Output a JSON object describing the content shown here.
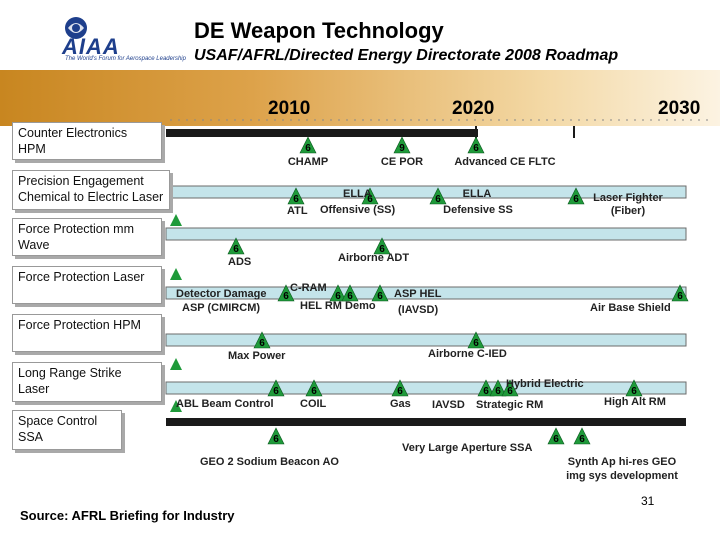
{
  "header": {
    "logo_text": "AIAA",
    "logo_tagline": "The World's Forum for Aerospace Leadership",
    "title": "DE Weapon Technology",
    "subtitle": "USAF/AFRL/Directed Energy Directorate 2008 Roadmap"
  },
  "timeline": {
    "years": [
      "2010",
      "2020",
      "2030"
    ],
    "milestone_marker": "6",
    "rows": [
      {
        "id": "ce",
        "label": "Counter Electronics HPM",
        "milestones": [
          {
            "mark": "6"
          },
          {
            "mark": "9"
          },
          {
            "mark": "6"
          }
        ],
        "annotations": [
          "CHAMP",
          "CE POR",
          "Advanced CE FLTC"
        ]
      },
      {
        "id": "pe",
        "label": "Precision Engagement Chemical to Electric Laser",
        "milestones": [
          {
            "mark": "6"
          },
          {
            "mark": "6"
          },
          {
            "mark": "6"
          },
          {
            "mark": "6"
          }
        ],
        "annotations": [
          "ELLA",
          "ATL",
          "Offensive (SS)",
          "ELLA",
          "Defensive SS",
          "Laser Fighter",
          "(Fiber)"
        ]
      },
      {
        "id": "fpm",
        "label": "Force Protection mm Wave",
        "milestones": [
          {
            "mark": "6"
          },
          {
            "mark": "6"
          }
        ],
        "annotations": [
          "ADS",
          "Airborne ADT"
        ]
      },
      {
        "id": "fpl",
        "label": "Force Protection Laser",
        "milestones": [
          {
            "mark": "6"
          },
          {
            "mark": "6"
          },
          {
            "mark": "6"
          },
          {
            "mark": "6"
          },
          {
            "mark": "6"
          }
        ],
        "annotations": [
          "Detector Damage",
          "ASP (CMIRCM)",
          "C-RAM",
          "HEL RM Demo",
          "ASP HEL",
          "(IAVSD)",
          "Air Base Shield"
        ]
      },
      {
        "id": "fph",
        "label": "Force Protection HPM",
        "milestones": [
          {
            "mark": "6"
          },
          {
            "mark": "6"
          }
        ],
        "annotations": [
          "Max Power",
          "Airborne C-IED"
        ]
      },
      {
        "id": "lrs",
        "label": "Long Range Strike Laser",
        "milestones": [
          {
            "mark": "6"
          },
          {
            "mark": "6"
          },
          {
            "mark": "6"
          },
          {
            "mark": "6"
          },
          {
            "mark": "6"
          },
          {
            "mark": "6"
          },
          {
            "mark": "6"
          }
        ],
        "annotations": [
          "ABL Beam Control",
          "COIL",
          "Gas",
          "Hybrid Electric",
          "IAVSD",
          "Strategic RM",
          "High Alt RM"
        ]
      },
      {
        "id": "ssa",
        "label": "Space Control SSA",
        "milestones": [
          {
            "mark": "6"
          },
          {
            "mark": "6"
          },
          {
            "mark": "6"
          }
        ],
        "annotations": [
          "GEO 2 Sodium Beacon AO",
          "Very Large Aperture SSA",
          "Synth Ap hi-res GEO",
          "img sys development"
        ]
      }
    ]
  },
  "footer": {
    "source": "Source: AFRL Briefing for Industry",
    "page_number": "31"
  },
  "colors": {
    "band_start": "#c88620",
    "band_end": "#fcf3e2",
    "lane_fill": "#c4e4ea",
    "lane_border": "#6b6b6b",
    "track_dark": "#1a1a1a",
    "milestone_green": "#1f9a3a",
    "logo_blue": "#1e3f8c"
  }
}
